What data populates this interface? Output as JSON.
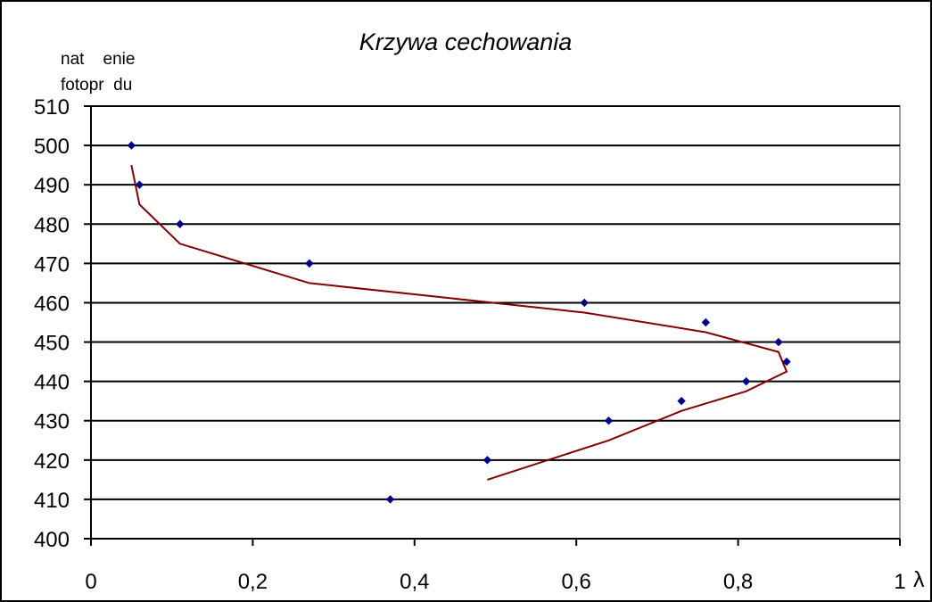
{
  "chart_data": {
    "type": "scatter",
    "title": "Krzywa cechowania",
    "ylabel_lines": [
      "nat    enie",
      "fotopr  du"
    ],
    "xlabel": "λ",
    "xlim": [
      0,
      1
    ],
    "ylim": [
      400,
      510
    ],
    "x_ticks": [
      0,
      0.2,
      0.4,
      0.6,
      0.8,
      1
    ],
    "x_tick_labels": [
      "0",
      "0,2",
      "0,4",
      "0,6",
      "0,8",
      "1"
    ],
    "y_ticks": [
      400,
      410,
      420,
      430,
      440,
      450,
      460,
      470,
      480,
      490,
      500,
      510
    ],
    "y_tick_labels": [
      "400",
      "410",
      "420",
      "430",
      "440",
      "450",
      "460",
      "470",
      "480",
      "490",
      "500",
      "510"
    ],
    "grid": "horizontal",
    "legend": "none",
    "series": [
      {
        "type": "scatter",
        "color": "#00008b",
        "points": [
          {
            "x": 0.05,
            "y": 500
          },
          {
            "x": 0.06,
            "y": 490
          },
          {
            "x": 0.11,
            "y": 480
          },
          {
            "x": 0.27,
            "y": 470
          },
          {
            "x": 0.61,
            "y": 460
          },
          {
            "x": 0.76,
            "y": 455
          },
          {
            "x": 0.85,
            "y": 450
          },
          {
            "x": 0.86,
            "y": 445
          },
          {
            "x": 0.81,
            "y": 440
          },
          {
            "x": 0.73,
            "y": 435
          },
          {
            "x": 0.64,
            "y": 430
          },
          {
            "x": 0.49,
            "y": 420
          },
          {
            "x": 0.37,
            "y": 410
          }
        ]
      },
      {
        "type": "line",
        "color": "#800000",
        "points": [
          {
            "x": 0.05,
            "y": 495
          },
          {
            "x": 0.06,
            "y": 485
          },
          {
            "x": 0.11,
            "y": 475
          },
          {
            "x": 0.27,
            "y": 465
          },
          {
            "x": 0.61,
            "y": 457.5
          },
          {
            "x": 0.76,
            "y": 452.5
          },
          {
            "x": 0.85,
            "y": 447.5
          },
          {
            "x": 0.86,
            "y": 442.5
          },
          {
            "x": 0.81,
            "y": 437.5
          },
          {
            "x": 0.73,
            "y": 432.5
          },
          {
            "x": 0.64,
            "y": 425
          },
          {
            "x": 0.49,
            "y": 415
          }
        ]
      }
    ]
  }
}
